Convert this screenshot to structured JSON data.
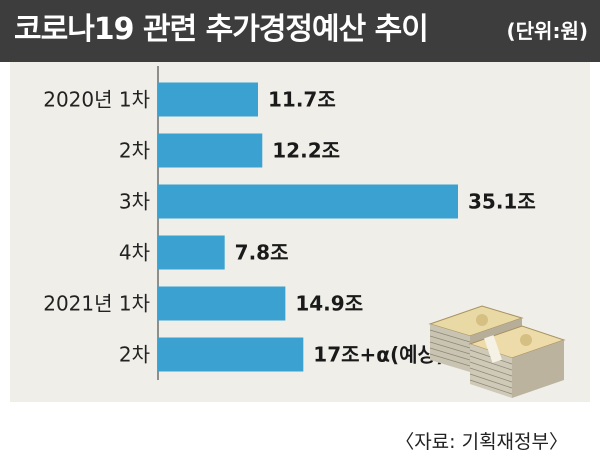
{
  "header": {
    "title": "코로나19 관련 추가경정예산 추이",
    "unit": "(단위:원)"
  },
  "source": "〈자료: 기획재정부〉",
  "colors": {
    "bar": "#3aa1d1",
    "header_bg": "#3d3d3d",
    "panel_bg": "#efeee9"
  },
  "icons": [
    "money-bundle-icon"
  ],
  "chart_data": {
    "type": "bar",
    "orientation": "horizontal",
    "title": "코로나19 관련 추가경정예산 추이",
    "categories": [
      "2020년 1차",
      "2차",
      "3차",
      "4차",
      "2021년 1차",
      "2차"
    ],
    "values": [
      11.7,
      12.2,
      35.1,
      7.8,
      14.9,
      17
    ],
    "data_labels": [
      "11.7조",
      "12.2조",
      "35.1조",
      "7.8조",
      "14.9조",
      "17조+α(예상)"
    ],
    "unit": "(단위:원)",
    "xlim": [
      0,
      36
    ],
    "grid": false,
    "legend": "none"
  }
}
